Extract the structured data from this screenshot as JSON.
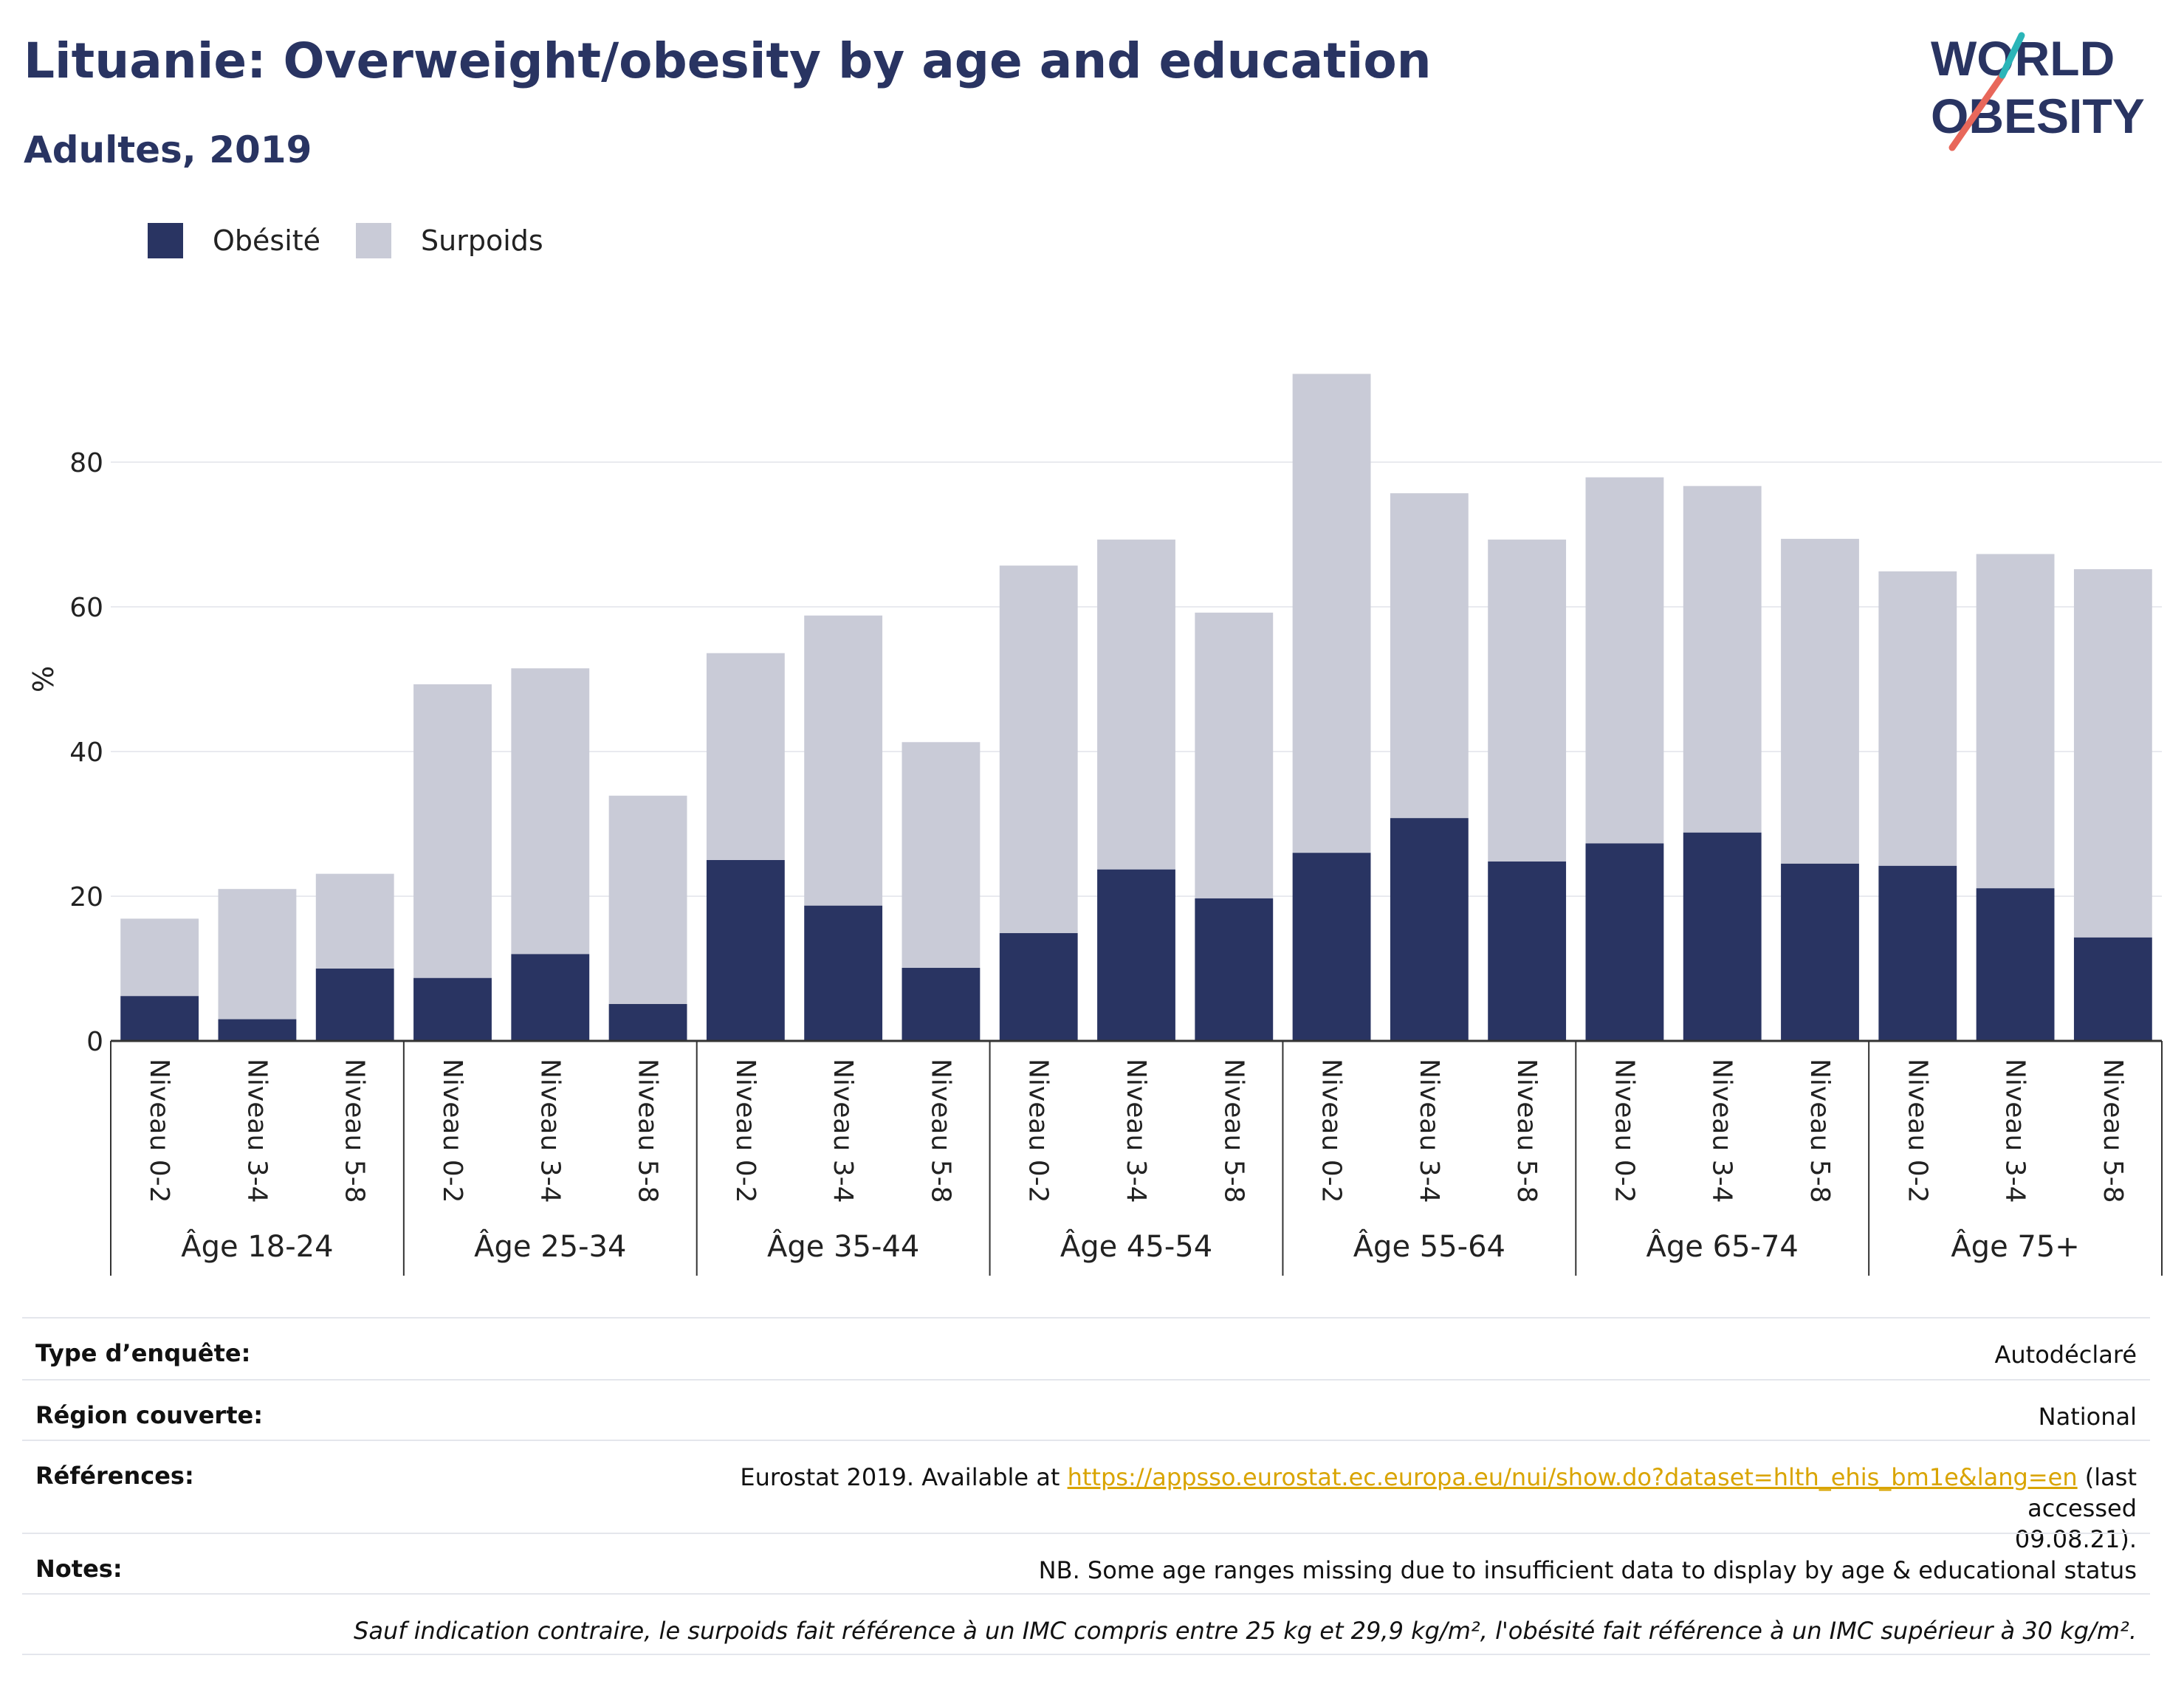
{
  "title": "Lituanie: Overweight/obesity by age and education",
  "subtitle": "Adultes, 2019",
  "logo": {
    "line1": "WORLD",
    "line2": "OBESITY",
    "colors": [
      "#293462",
      "#e8675a",
      "#2bb5b8"
    ]
  },
  "colors": {
    "obesity": "#293462",
    "overweight": "#c9cbd7",
    "axis": "#333333",
    "grid": "#e9eaef",
    "link": "#d9a400"
  },
  "chart_data": {
    "type": "bar",
    "stacked": true,
    "ylabel": "%",
    "ylim": [
      0,
      100
    ],
    "yticks": [
      0,
      20,
      40,
      60,
      80
    ],
    "grid": true,
    "legend_position": "top-left",
    "groups": [
      "Âge 18-24",
      "Âge 25-34",
      "Âge 35-44",
      "Âge 45-54",
      "Âge 55-64",
      "Âge 65-74",
      "Âge 75+"
    ],
    "levels": [
      "Niveau 0-2",
      "Niveau 3-4",
      "Niveau 5-8"
    ],
    "series": [
      {
        "name": "Obésité",
        "values": [
          6.2,
          3.0,
          10.0,
          8.7,
          12.0,
          5.1,
          25.0,
          18.7,
          10.1,
          14.9,
          23.7,
          19.7,
          26.0,
          30.8,
          24.8,
          27.3,
          28.8,
          24.5,
          24.2,
          21.1,
          14.3
        ]
      },
      {
        "name": "Surpoids",
        "values": [
          10.7,
          18.0,
          13.1,
          40.6,
          39.5,
          28.8,
          28.6,
          40.1,
          31.2,
          50.8,
          45.6,
          39.5,
          66.2,
          44.9,
          44.5,
          50.6,
          47.9,
          44.9,
          40.7,
          46.2,
          50.9
        ]
      }
    ]
  },
  "info": {
    "survey_type": {
      "label": "Type d’enquête:",
      "value": "Autodéclaré"
    },
    "region": {
      "label": "Région couverte:",
      "value": "National"
    },
    "references": {
      "label": "Références:",
      "prefix": "Eurostat 2019. Available at",
      "link": "https://appsso.eurostat.ec.europa.eu/nui/show.do?dataset=hlth_ehis_bm1e&lang=en",
      "suffix": "(last accessed",
      "line2": "09.08.21)."
    },
    "notes": {
      "label": "Notes:",
      "value": "NB. Some age ranges missing due to insufficient data to display by age & educational status"
    },
    "footnote": "Sauf indication contraire, le surpoids fait référence à un IMC compris entre 25 kg et 29,9 kg/m², l'obésité fait référence à un IMC supérieur à 30 kg/m²."
  }
}
